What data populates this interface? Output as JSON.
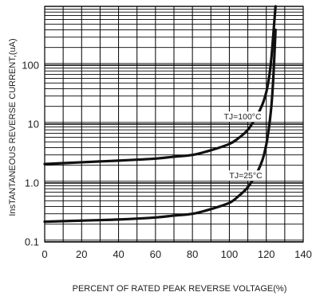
{
  "chart_data": {
    "type": "line",
    "title": "",
    "xlabel": "PERCENT OF RATED PEAK REVERSE VOLTAGE(%)",
    "ylabel": "InsTANTANEOUS REVERSE CURRENT,(uA)",
    "xlim": [
      0,
      140
    ],
    "ylim": [
      0.1,
      1000
    ],
    "yscale": "log",
    "grid": true,
    "x_ticks": [
      0,
      20,
      40,
      60,
      80,
      100,
      120,
      140
    ],
    "x_tick_labels": [
      "0",
      "20",
      "40",
      "60",
      "80",
      "100",
      "120",
      "140"
    ],
    "y_ticks": [
      0.1,
      1,
      10,
      100
    ],
    "y_tick_labels": [
      "0.1",
      "1.0",
      "10",
      "100"
    ],
    "series": [
      {
        "name": "TJ=100°C",
        "x": [
          0,
          20,
          40,
          60,
          70,
          80,
          90,
          100,
          105,
          110,
          115,
          118,
          120,
          121,
          122,
          122.5,
          123,
          124,
          125
        ],
        "y": [
          2.1,
          2.25,
          2.4,
          2.6,
          2.8,
          3.0,
          3.6,
          4.6,
          5.8,
          8,
          14,
          22,
          35,
          50,
          80,
          110,
          160,
          400,
          1000
        ]
      },
      {
        "name": "TJ=25°C",
        "x": [
          0,
          20,
          40,
          60,
          70,
          80,
          90,
          100,
          105,
          110,
          115,
          118,
          120,
          121,
          122,
          123,
          124,
          125
        ],
        "y": [
          0.22,
          0.23,
          0.24,
          0.26,
          0.28,
          0.3,
          0.36,
          0.46,
          0.6,
          0.85,
          1.5,
          2.5,
          4.5,
          7,
          12,
          25,
          80,
          400
        ]
      }
    ],
    "annotations": [
      {
        "text": "TJ=100°C",
        "x": 97,
        "y": 12
      },
      {
        "text": "TJ=25°C",
        "x": 100,
        "y": 1.2
      }
    ]
  }
}
